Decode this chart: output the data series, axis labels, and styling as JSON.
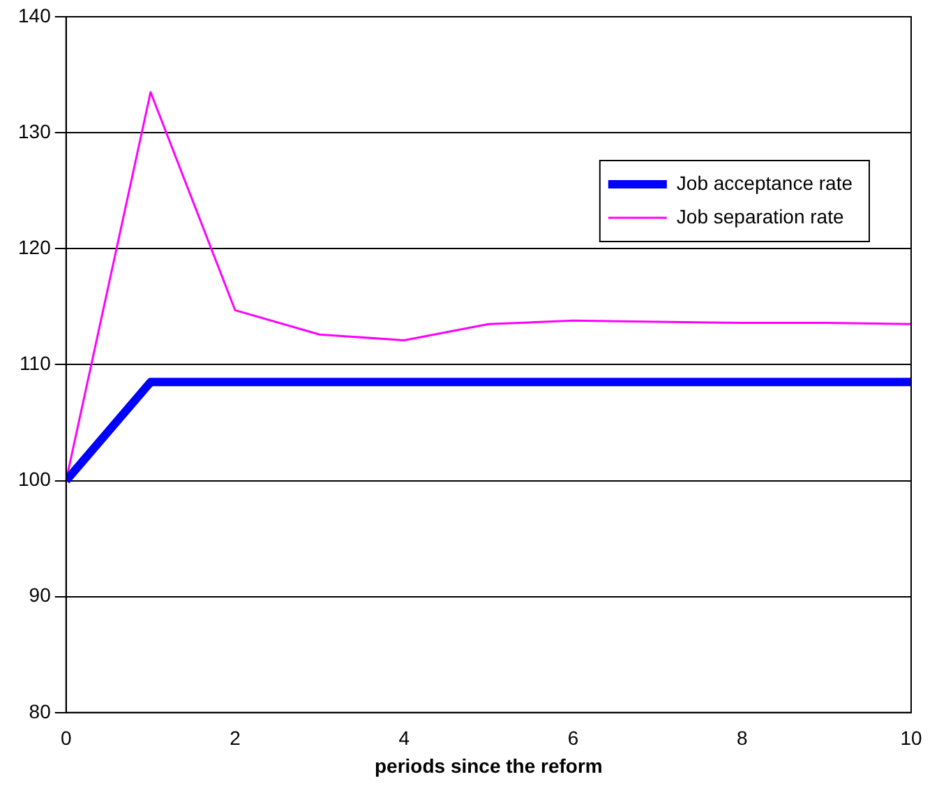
{
  "chart_data": {
    "type": "line",
    "xlabel": "periods since the reform",
    "x": [
      0,
      1,
      2,
      3,
      4,
      5,
      6,
      7,
      8,
      9,
      10
    ],
    "series": [
      {
        "name": "Job acceptance rate",
        "color": "#0000ff",
        "values": [
          100,
          108.5,
          108.5,
          108.5,
          108.5,
          108.5,
          108.5,
          108.5,
          108.5,
          108.5,
          108.5
        ]
      },
      {
        "name": "Job separation rate",
        "color": "#ff00ff",
        "values": [
          100,
          133.5,
          114.7,
          112.6,
          112.1,
          113.5,
          113.8,
          113.7,
          113.6,
          113.6,
          113.5
        ]
      }
    ],
    "xlim": [
      0,
      10
    ],
    "xticks": [
      0,
      2,
      4,
      6,
      8,
      10
    ],
    "ylim": [
      80,
      140
    ],
    "yticks": [
      80,
      90,
      100,
      110,
      120,
      130,
      140
    ],
    "grid": "y",
    "legend": "top right",
    "marker": "none",
    "line_style": "solid"
  }
}
